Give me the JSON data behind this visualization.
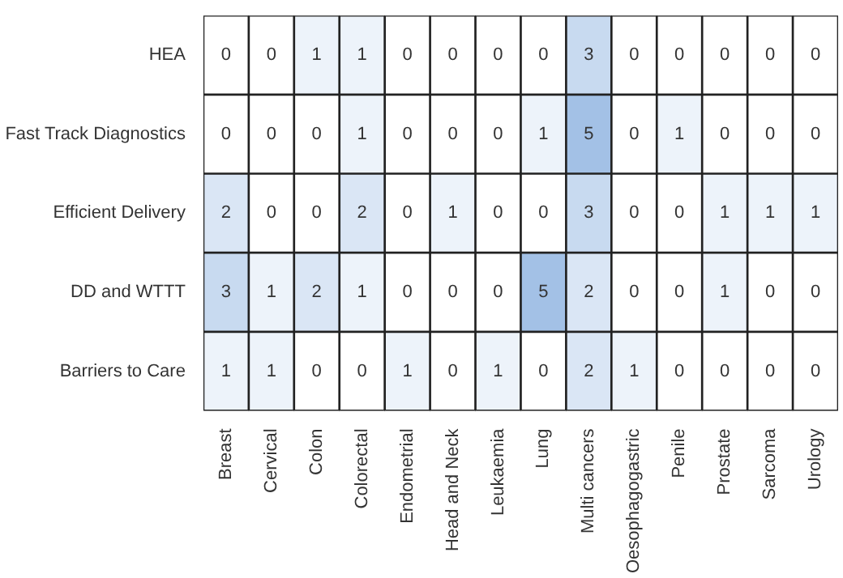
{
  "chart_data": {
    "type": "heatmap",
    "categories": [
      "Breast",
      "Cervical",
      "Colon",
      "Colorectal",
      "Endometrial",
      "Head and Neck",
      "Leukaemia",
      "Lung",
      "Multi cancers",
      "Oesophagogastric",
      "Penile",
      "Prostate",
      "Sarcoma",
      "Urology"
    ],
    "y_categories": [
      "HEA",
      "Fast Track Diagnostics",
      "Efficient Delivery",
      "DD and WTTT",
      "Barriers to Care"
    ],
    "cells": [
      [
        0,
        0,
        1,
        1,
        0,
        0,
        0,
        0,
        3,
        0,
        0,
        0,
        0,
        0
      ],
      [
        0,
        0,
        0,
        1,
        0,
        0,
        0,
        1,
        5,
        0,
        1,
        0,
        0,
        0
      ],
      [
        2,
        0,
        0,
        2,
        0,
        1,
        0,
        0,
        3,
        0,
        0,
        1,
        1,
        1
      ],
      [
        3,
        1,
        2,
        1,
        0,
        0,
        0,
        5,
        2,
        0,
        0,
        1,
        0,
        0
      ],
      [
        1,
        1,
        0,
        0,
        1,
        0,
        1,
        0,
        2,
        1,
        0,
        0,
        0,
        0
      ]
    ],
    "data_labels": true
  }
}
